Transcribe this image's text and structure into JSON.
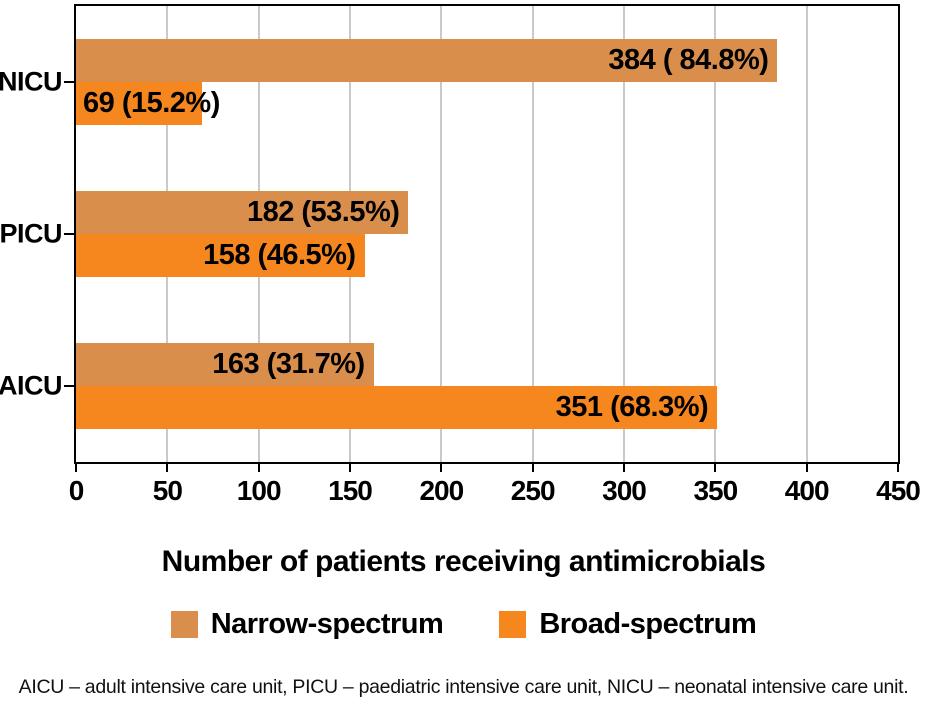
{
  "chart_data": {
    "type": "bar",
    "orientation": "horizontal",
    "categories": [
      "NICU",
      "PICU",
      "AICU"
    ],
    "series": [
      {
        "name": "Narrow-spectrum",
        "color": "#D98E4C",
        "values": [
          384,
          182,
          163
        ],
        "labels": [
          "384 ( 84.8%)",
          "182 (53.5%)",
          "163 (31.7%)"
        ],
        "label_align": [
          "end",
          "end",
          "end"
        ]
      },
      {
        "name": "Broad-spectrum",
        "color": "#F6871F",
        "values": [
          69,
          158,
          351
        ],
        "labels": [
          "69 (15.2%)",
          "158 (46.5%)",
          "351 (68.3%)"
        ],
        "label_align": [
          "start",
          "end",
          "end"
        ]
      }
    ],
    "xlabel": "Number of patients receiving antimicrobials",
    "xlim": [
      0,
      450
    ],
    "xticks": [
      0,
      50,
      100,
      150,
      200,
      250,
      300,
      350,
      400,
      450
    ],
    "grid": "vertical",
    "gridline_color": "#c9c9c9",
    "frame_color": "#000000",
    "text_color": "#000000",
    "legend_position": "bottom"
  },
  "footnote": {
    "text": "AICU – adult intensive care unit, PICU – paediatric intensive care unit, NICU – neonatal intensive care unit."
  }
}
